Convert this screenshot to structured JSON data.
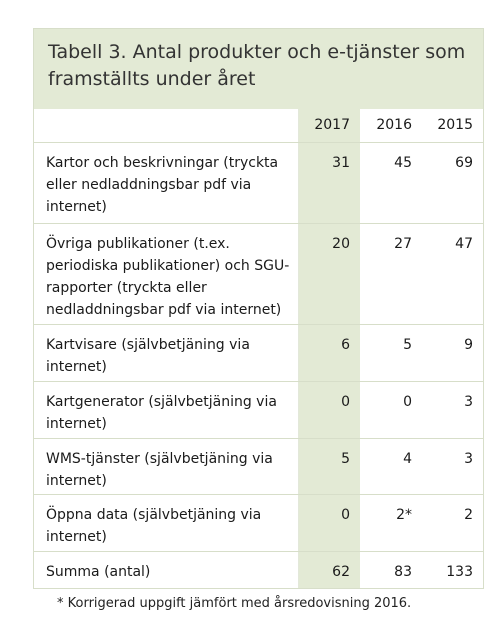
{
  "table": {
    "caption": "Tabell 3. Antal produkter och e-tjänster som framställts under året",
    "headers": [
      "",
      "2017",
      "2016",
      "2015"
    ],
    "rows": [
      {
        "label": "Kartor och beskrivningar (tryckta eller nedladdningsbar pdf via internet)",
        "v2017": "31",
        "v2016": "45",
        "v2015": "69"
      },
      {
        "label": "Övriga publikationer (t.ex. periodiska publikationer) och SGU-rapporter (tryckta eller nedladdningsbar pdf via internet)",
        "v2017": "20",
        "v2016": "27",
        "v2015": "47"
      },
      {
        "label": "Kartvisare (självbetjäning via internet)",
        "v2017": "6",
        "v2016": "5",
        "v2015": "9"
      },
      {
        "label": "Kartgenerator (självbetjäning via internet)",
        "v2017": "0",
        "v2016": "0",
        "v2015": "3"
      },
      {
        "label": "WMS-tjänster (självbetjäning via internet)",
        "v2017": "5",
        "v2016": "4",
        "v2015": "3"
      },
      {
        "label": "Öppna data (självbetjäning via internet)",
        "v2017": "0",
        "v2016": "2*",
        "v2015": "2"
      },
      {
        "label": "Summa (antal)",
        "v2017": "62",
        "v2016": "83",
        "v2015": "133"
      }
    ]
  },
  "footnote": "* Korrigerad uppgift jämfört med årsredovisning 2016.",
  "colors": {
    "highlight": "#e3ead5",
    "border": "#d7dec9"
  }
}
